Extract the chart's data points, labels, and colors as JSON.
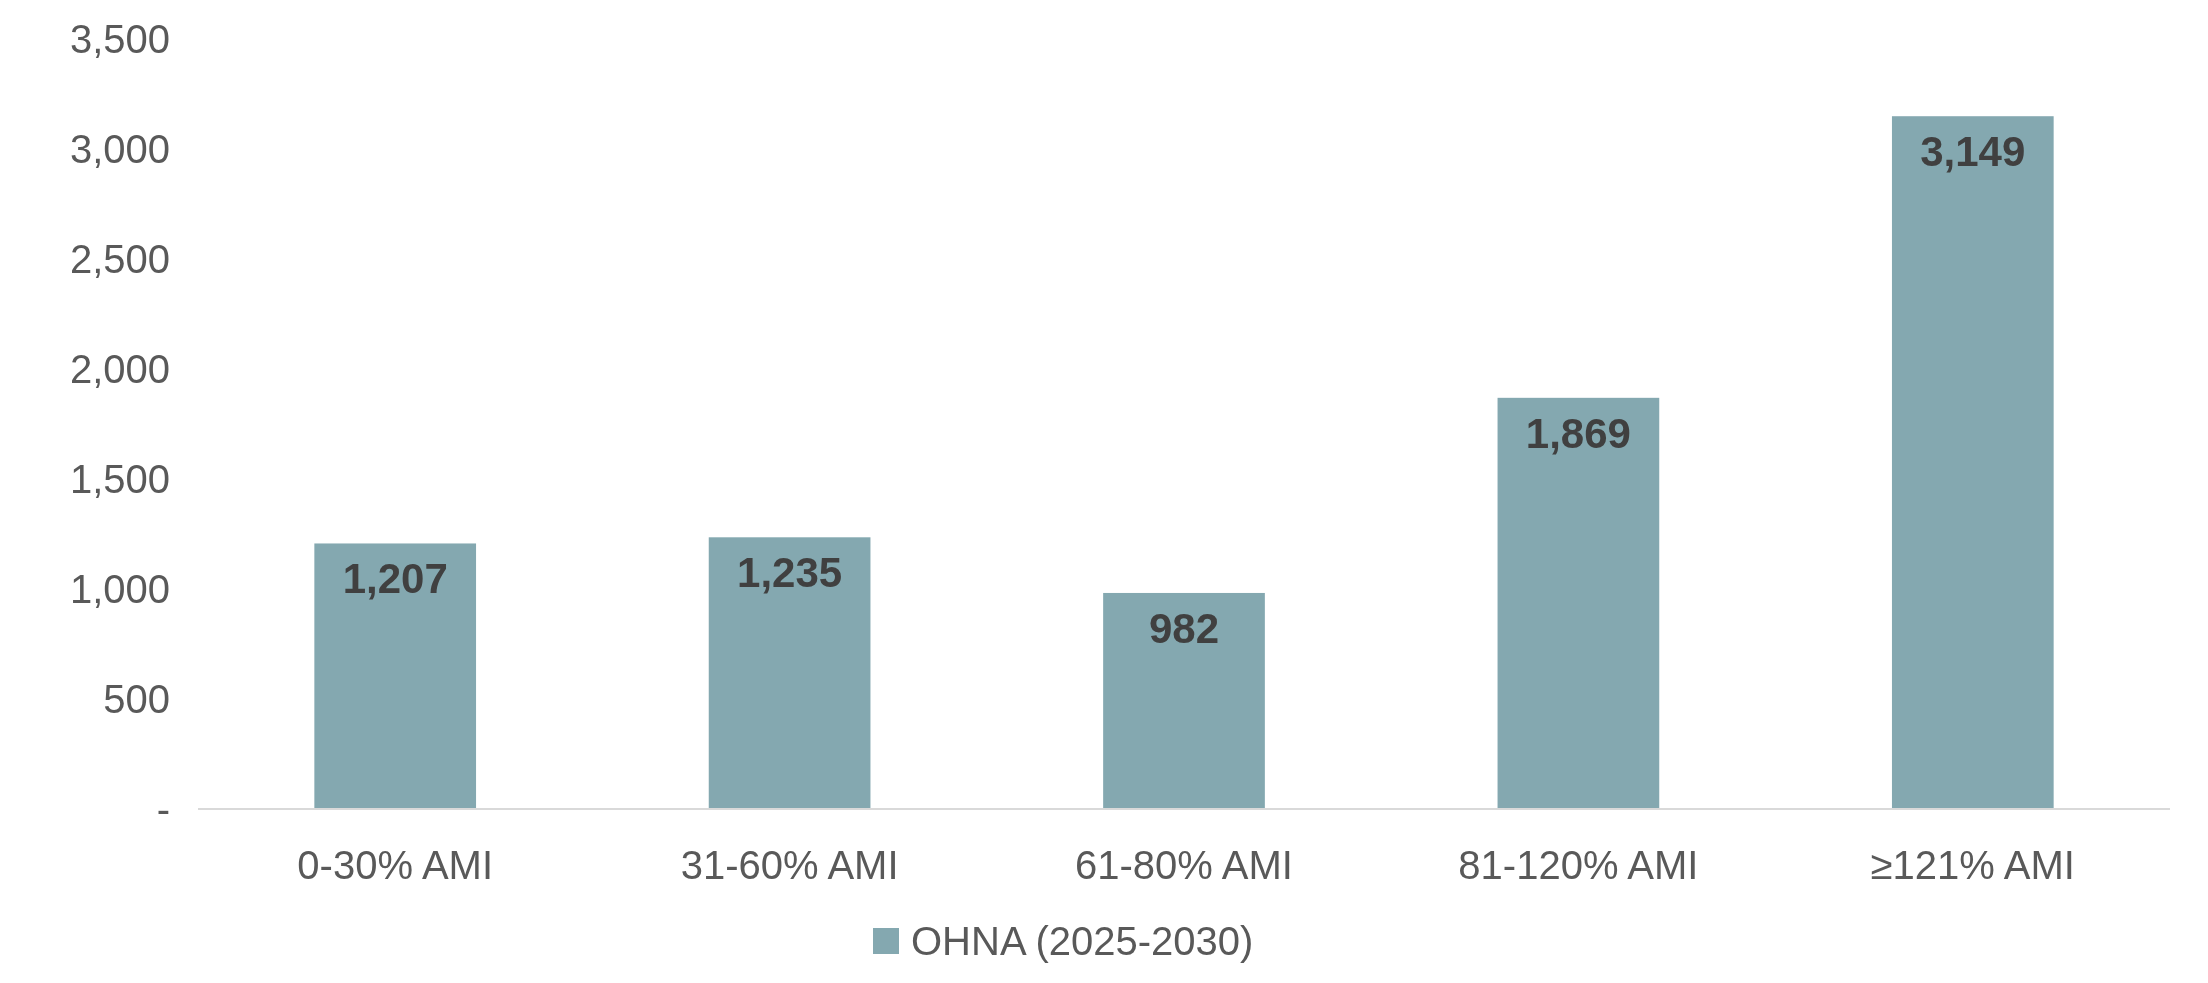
{
  "chart_data": {
    "type": "bar",
    "categories": [
      "0-30% AMI",
      "31-60% AMI",
      "61-80% AMI",
      "81-120% AMI",
      "≥121% AMI"
    ],
    "series": [
      {
        "name": "OHNA (2025-2030)",
        "color": "#84a8b0",
        "values": [
          1207,
          1235,
          982,
          1869,
          3149
        ],
        "value_labels": [
          "1,207",
          "1,235",
          "982",
          "1,869",
          "3,149"
        ]
      }
    ],
    "ylim": [
      0,
      3500
    ],
    "yticks": [
      {
        "value": 0,
        "label": "-"
      },
      {
        "value": 500,
        "label": "500"
      },
      {
        "value": 1000,
        "label": "1,000"
      },
      {
        "value": 1500,
        "label": "1,500"
      },
      {
        "value": 2000,
        "label": "2,000"
      },
      {
        "value": 2500,
        "label": "2,500"
      },
      {
        "value": 3000,
        "label": "3,000"
      },
      {
        "value": 3500,
        "label": "3,500"
      }
    ],
    "grid": false,
    "legend": "bottom"
  }
}
